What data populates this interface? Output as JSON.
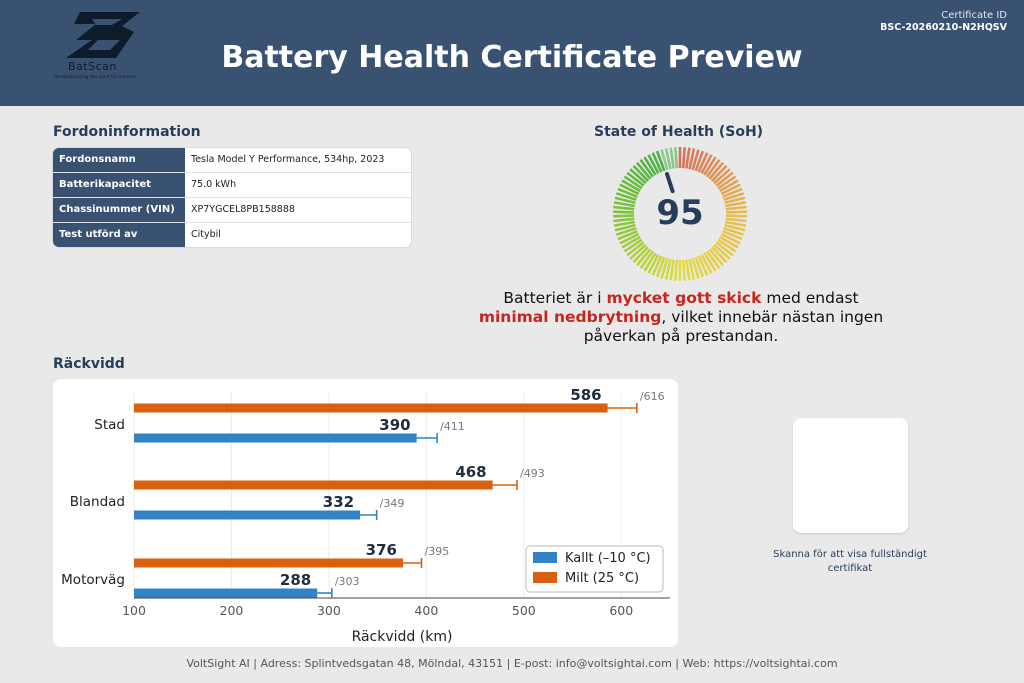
{
  "header": {
    "brand_name": "BatScan",
    "brand_tagline": "Revolutionizing the used EV markets",
    "title": "Battery Health Certificate Preview",
    "certificate_label": "Certificate ID",
    "certificate_id": "BSC-20260210-N2HQSV",
    "bar_color": "#3a5272"
  },
  "vehicle_info": {
    "section_title": "Fordoninformation",
    "rows": [
      {
        "label": "Fordonsnamn",
        "value": "Tesla Model Y Performance, 534hp, 2023"
      },
      {
        "label": "Batterikapacitet",
        "value": "75.0 kWh"
      },
      {
        "label": "Chassinummer (VIN)",
        "value": "XP7YGCEL8PB158888"
      },
      {
        "label": "Test utförd av",
        "value": "Citybil"
      }
    ]
  },
  "soh": {
    "section_title": "State of Health (SoH)",
    "value": "95",
    "percent": 95,
    "description_parts": [
      {
        "text": "Batteriet är i ",
        "highlight": false
      },
      {
        "text": "mycket gott skick",
        "highlight": true
      },
      {
        "text": " med endast ",
        "highlight": false
      },
      {
        "text": "minimal nedbrytning",
        "highlight": true
      },
      {
        "text": ", vilket innebär nästan ingen påverkan på prestandan.",
        "highlight": false
      }
    ],
    "highlight_color": "#c8251f"
  },
  "range": {
    "section_title": "Räckvidd"
  },
  "chart_data": {
    "type": "bar",
    "orientation": "horizontal",
    "categories": [
      "Stad",
      "Blandad",
      "Motorväg"
    ],
    "series": [
      {
        "name": "Milt (25 °C)",
        "values": [
          586,
          468,
          376
        ],
        "max_values": [
          616,
          493,
          395
        ],
        "color": "#d9600f"
      },
      {
        "name": "Kallt (–10 °C)",
        "values": [
          390,
          332,
          288
        ],
        "max_values": [
          411,
          349,
          303
        ],
        "color": "#3183c6"
      }
    ],
    "max_label_prefix": "/",
    "xlabel": "Räckvidd (km)",
    "ylabel": "",
    "xlim": [
      100,
      650
    ],
    "xticks": [
      100,
      200,
      300,
      400,
      500,
      600
    ],
    "grid": true,
    "legend_position": "bottom-right",
    "legend": [
      "Kallt (–10 °C)",
      "Milt (25 °C)"
    ]
  },
  "qr": {
    "caption": "Skanna för att visa fullständigt certifikat"
  },
  "footer": {
    "text": "VoltSight AI | Adress: Splintvedsgatan 48, Mölndal, 43151 | E-post: info@voltsightai.com | Web: https://voltsightai.com"
  }
}
